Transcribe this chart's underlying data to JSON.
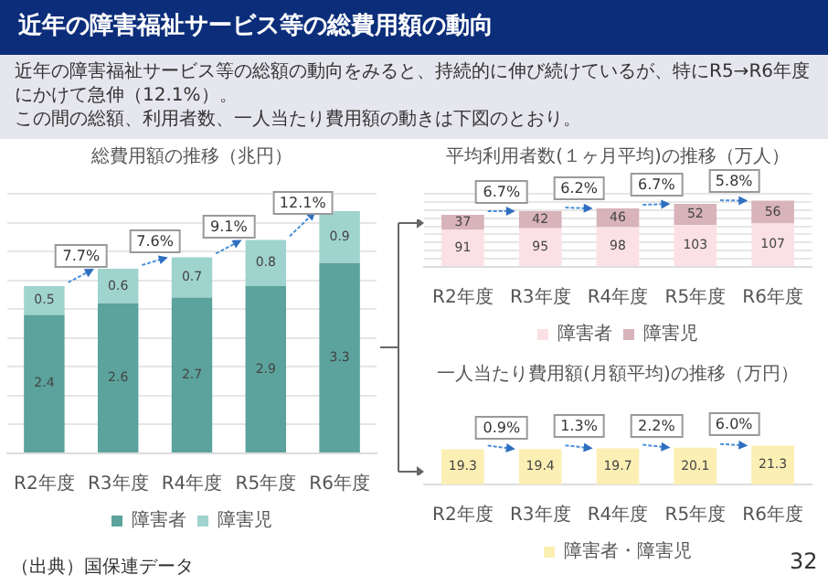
{
  "chart_data": [
    {
      "type": "bar",
      "title": "総費用額の推移（兆円）",
      "categories": [
        "R2年度",
        "R3年度",
        "R4年度",
        "R5年度",
        "R6年度"
      ],
      "stacked": true,
      "series": [
        {
          "name": "障害者",
          "color": "#5ba39c",
          "values": [
            2.4,
            2.6,
            2.7,
            2.9,
            3.3
          ]
        },
        {
          "name": "障害児",
          "color": "#9fd3ce",
          "values": [
            0.5,
            0.6,
            0.7,
            0.8,
            0.9
          ]
        }
      ],
      "ylim": [
        0,
        4.5
      ],
      "yticks": [
        {
          "value": 0,
          "label": null
        },
        {
          "value": 0.5,
          "label": null
        },
        {
          "value": 1,
          "label": null
        },
        {
          "value": 1.5,
          "label": null
        },
        {
          "value": 2,
          "label": null
        },
        {
          "value": 2.5,
          "label": null
        },
        {
          "value": 3,
          "label": null
        },
        {
          "value": 3.5,
          "label": null
        },
        {
          "value": 4,
          "label": null
        },
        {
          "value": 4.5,
          "label": null
        }
      ],
      "tick_labels": "x",
      "grid": "y",
      "legend": "bottom",
      "data_labels": true,
      "annotations": [
        "近年の障害福祉サービス等の総費用額の動向",
        "近年の障害福祉サービス等の総額の動向をみると、持続的に伸び続けているが、特にR5→R6年度にかけて急伸（12.1%）。",
        "この間の総額、利用者数、一人当たり費用額の動きは下図のとおり。",
        "（出典）国保連データ",
        "32",
        {
          "text": "7.7%",
          "x": "R3年度",
          "y": 3.2
        },
        {
          "text": "7.6%",
          "x": "R4年度",
          "y": 3.4
        },
        {
          "text": "9.1%",
          "x": "R5年度",
          "y": 3.7
        },
        {
          "text": "12.1%",
          "x": "R6年度",
          "y": 4.2
        }
      ]
    },
    {
      "type": "bar",
      "title": "平均利用者数(１ヶ月平均)の推移（万人）",
      "categories": [
        "R2年度",
        "R3年度",
        "R4年度",
        "R5年度",
        "R6年度"
      ],
      "stacked": true,
      "series": [
        {
          "name": "障害者",
          "color": "#fbe1e5",
          "values": [
            91,
            95,
            98,
            103,
            107
          ]
        },
        {
          "name": "障害児",
          "color": "#d8b3ba",
          "values": [
            37,
            42,
            46,
            52,
            56
          ]
        }
      ],
      "ylim": [
        0,
        180
      ],
      "yticks": [
        {
          "value": 0,
          "label": null
        },
        {
          "value": 20,
          "label": null
        },
        {
          "value": 40,
          "label": null
        },
        {
          "value": 60,
          "label": null
        },
        {
          "value": 80,
          "label": null
        },
        {
          "value": 100,
          "label": null
        },
        {
          "value": 120,
          "label": null
        },
        {
          "value": 140,
          "label": null
        },
        {
          "value": 160,
          "label": null
        },
        {
          "value": 180,
          "label": null
        }
      ],
      "tick_labels": "x",
      "grid": "y",
      "legend": "bottom",
      "data_labels": true,
      "annotations": [
        {
          "text": "6.7%",
          "x": "R3年度",
          "y": 137
        },
        {
          "text": "6.2%",
          "x": "R4年度",
          "y": 144
        },
        {
          "text": "6.7%",
          "x": "R5年度",
          "y": 155
        },
        {
          "text": "5.8%",
          "x": "R6年度",
          "y": 163
        }
      ]
    },
    {
      "type": "bar",
      "title": "一人当たり費用額(月額平均)の推移（万円）",
      "categories": [
        "R2年度",
        "R3年度",
        "R4年度",
        "R5年度",
        "R6年度"
      ],
      "series": [
        {
          "name": "障害者・障害児",
          "color": "#fcefb4",
          "values": [
            19.3,
            19.4,
            19.7,
            20.1,
            21.3
          ]
        }
      ],
      "tick_labels": "x",
      "legend": "bottom",
      "data_labels": true,
      "annotations": [
        {
          "text": "0.9%",
          "x": "R3年度",
          "y": 19.4
        },
        {
          "text": "1.3%",
          "x": "R4年度",
          "y": 19.7
        },
        {
          "text": "2.2%",
          "x": "R5年度",
          "y": 20.1
        },
        {
          "text": "6.0%",
          "x": "R6年度",
          "y": 21.3
        }
      ]
    }
  ]
}
